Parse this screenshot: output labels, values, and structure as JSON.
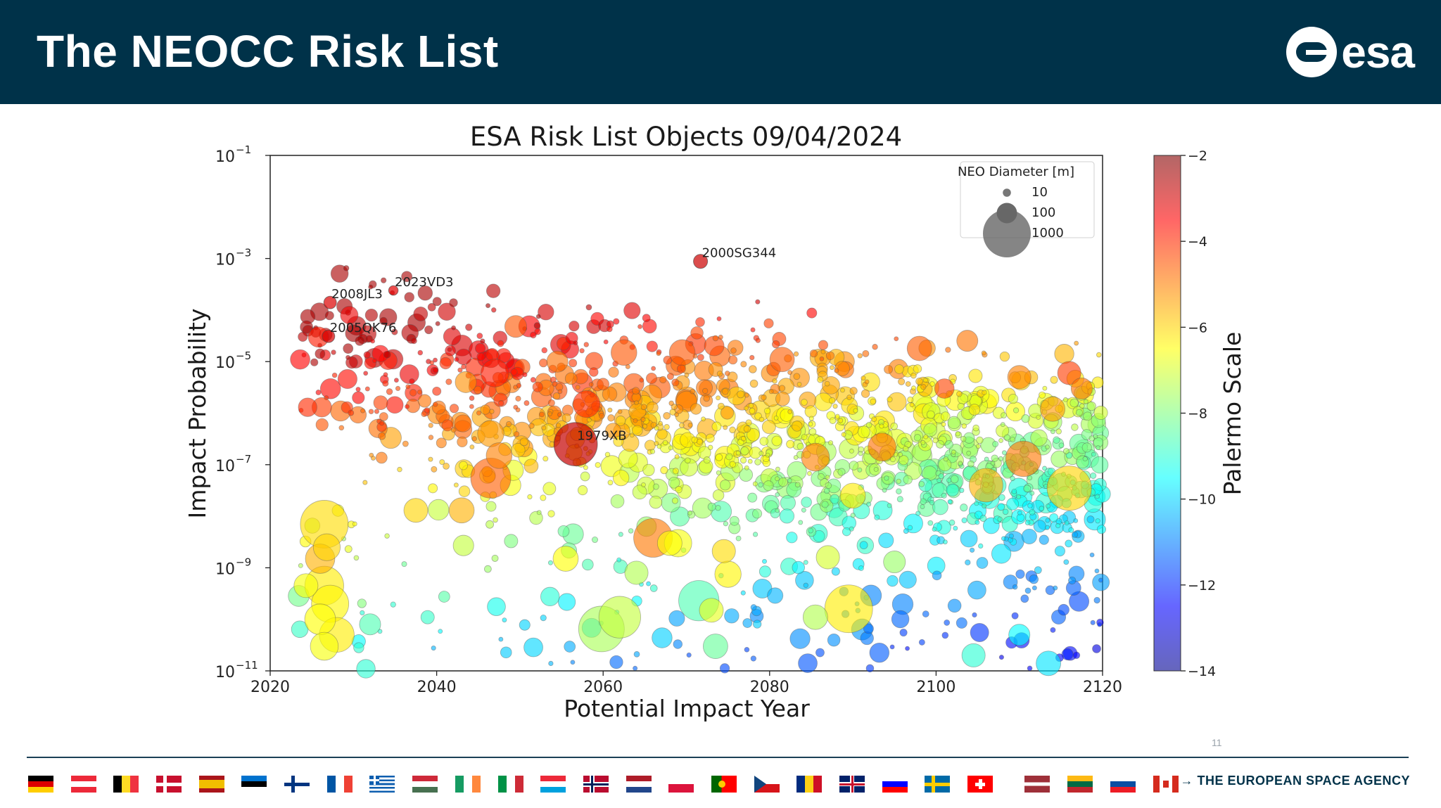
{
  "slide": {
    "title": "The NEOCC Risk List",
    "logo_text": "esa",
    "page_number": "11",
    "agency": "→ THE EUROPEAN SPACE AGENCY"
  },
  "flags": [
    {
      "name": "germany",
      "stripes": "h",
      "colors": [
        "#000000",
        "#dd0000",
        "#ffce00"
      ]
    },
    {
      "name": "austria",
      "stripes": "h",
      "colors": [
        "#ed2939",
        "#ffffff",
        "#ed2939"
      ]
    },
    {
      "name": "belgium",
      "stripes": "v",
      "colors": [
        "#000000",
        "#fdda24",
        "#ef3340"
      ]
    },
    {
      "name": "denmark",
      "cross": "nordic",
      "colors": [
        "#c8102e",
        "#ffffff"
      ]
    },
    {
      "name": "spain",
      "stripes": "h3",
      "colors": [
        "#aa151b",
        "#f1bf00",
        "#aa151b"
      ]
    },
    {
      "name": "estonia",
      "stripes": "h",
      "colors": [
        "#0072ce",
        "#000000",
        "#ffffff"
      ]
    },
    {
      "name": "finland",
      "cross": "nordic",
      "colors": [
        "#ffffff",
        "#003580"
      ]
    },
    {
      "name": "france",
      "stripes": "v",
      "colors": [
        "#0055a4",
        "#ffffff",
        "#ef4135"
      ]
    },
    {
      "name": "greece",
      "stripes": "greek",
      "colors": [
        "#0d5eaf",
        "#ffffff"
      ]
    },
    {
      "name": "hungary",
      "stripes": "h",
      "colors": [
        "#ce2939",
        "#ffffff",
        "#477050"
      ]
    },
    {
      "name": "ireland",
      "stripes": "v",
      "colors": [
        "#169b62",
        "#ffffff",
        "#ff883e"
      ]
    },
    {
      "name": "italy",
      "stripes": "v",
      "colors": [
        "#009246",
        "#ffffff",
        "#ce2b37"
      ]
    },
    {
      "name": "luxembourg",
      "stripes": "h",
      "colors": [
        "#ed2939",
        "#ffffff",
        "#00a1de"
      ]
    },
    {
      "name": "norway",
      "cross": "nordic2",
      "colors": [
        "#ba0c2f",
        "#ffffff",
        "#00205b"
      ]
    },
    {
      "name": "netherlands",
      "stripes": "h",
      "colors": [
        "#ae1c28",
        "#ffffff",
        "#21468b"
      ]
    },
    {
      "name": "poland",
      "stripes": "h2",
      "colors": [
        "#ffffff",
        "#dc143c"
      ]
    },
    {
      "name": "portugal",
      "stripes": "pt",
      "colors": [
        "#006600",
        "#ff0000"
      ]
    },
    {
      "name": "czechia",
      "stripes": "cz",
      "colors": [
        "#ffffff",
        "#d7141a",
        "#11457e"
      ]
    },
    {
      "name": "romania",
      "stripes": "v",
      "colors": [
        "#002b7f",
        "#fcd116",
        "#ce1126"
      ]
    },
    {
      "name": "united-kingdom",
      "stripes": "uk",
      "colors": [
        "#012169",
        "#ffffff",
        "#c8102e"
      ]
    },
    {
      "name": "slovenia",
      "stripes": "h",
      "colors": [
        "#ffffff",
        "#0000ff",
        "#ff0000"
      ]
    },
    {
      "name": "sweden",
      "cross": "nordic",
      "colors": [
        "#006aa7",
        "#fecc00"
      ]
    },
    {
      "name": "switzerland",
      "cross": "swiss",
      "colors": [
        "#ff0000",
        "#ffffff"
      ]
    },
    {
      "name": "latvia",
      "stripes": "lv",
      "colors": [
        "#9e3039",
        "#ffffff"
      ]
    },
    {
      "name": "lithuania",
      "stripes": "h",
      "colors": [
        "#fdb913",
        "#006a44",
        "#c1272d"
      ]
    },
    {
      "name": "slovakia",
      "stripes": "h",
      "colors": [
        "#ffffff",
        "#0b4ea2",
        "#ee1c25"
      ]
    },
    {
      "name": "canada",
      "stripes": "ca",
      "colors": [
        "#d52b1e",
        "#ffffff"
      ]
    }
  ],
  "chart_data": {
    "type": "scatter",
    "title": "ESA Risk List Objects 09/04/2024",
    "xlabel": "Potential Impact Year",
    "ylabel": "Impact Probability",
    "xlim": [
      2020,
      2120
    ],
    "ylim": [
      1e-11,
      0.1
    ],
    "yscale": "log",
    "xticks": [
      "2020",
      "2040",
      "2060",
      "2080",
      "2100",
      "2120"
    ],
    "yticks": [
      {
        "base": "10",
        "exp": "−1"
      },
      {
        "base": "10",
        "exp": "−3"
      },
      {
        "base": "10",
        "exp": "−5"
      },
      {
        "base": "10",
        "exp": "−7"
      },
      {
        "base": "10",
        "exp": "−9"
      },
      {
        "base": "10",
        "exp": "−11"
      }
    ],
    "colorbar": {
      "label": "Palermo Scale",
      "range": [
        -14,
        -2
      ],
      "ticks": [
        "−2",
        "−4",
        "−6",
        "−8",
        "−10",
        "−12",
        "−14"
      ],
      "colormap": "jet"
    },
    "size_legend": {
      "title": "NEO Diameter [m]",
      "entries": [
        {
          "label": "10",
          "diameter_m": 10
        },
        {
          "label": "100",
          "diameter_m": 100
        },
        {
          "label": "1000",
          "diameter_m": 1000
        }
      ],
      "placement": "top-right"
    },
    "labeled_points": [
      {
        "name": "2023VD3",
        "year": 2034.8,
        "prob": 0.00024,
        "palermo": -3.2,
        "diameter_m": 15
      },
      {
        "name": "2000SG344",
        "year": 2071.7,
        "prob": 0.00088,
        "palermo": -2.9,
        "diameter_m": 40
      },
      {
        "name": "2008JL3",
        "year": 2027.2,
        "prob": 0.00014,
        "palermo": -3.1,
        "diameter_m": 30
      },
      {
        "name": "2005QK76",
        "year": 2027.0,
        "prob": 3.1e-05,
        "palermo": -3.0,
        "diameter_m": 30
      },
      {
        "name": "1979XB",
        "year": 2056.7,
        "prob": 2.5e-07,
        "palermo": -2.8,
        "diameter_m": 660
      }
    ],
    "points": [
      {
        "x": 2026.5,
        "y": 7e-09,
        "p": -6.1,
        "d": 1100
      },
      {
        "x": 2026.5,
        "y": 4.5e-10,
        "p": -6.3,
        "d": 500
      },
      {
        "x": 2027.2,
        "y": 2e-10,
        "p": -6.4,
        "d": 450
      },
      {
        "x": 2028.0,
        "y": 5e-11,
        "p": -6.3,
        "d": 380
      },
      {
        "x": 2026.0,
        "y": 1.5e-09,
        "p": -5.6,
        "d": 250
      },
      {
        "x": 2026.8,
        "y": 2.5e-09,
        "p": -6.0,
        "d": 200
      },
      {
        "x": 2026.0,
        "y": 1e-10,
        "p": -6.5,
        "d": 280
      },
      {
        "x": 2026.5,
        "y": 3e-11,
        "p": -6.6,
        "d": 220
      },
      {
        "x": 2024.3,
        "y": 4.5e-10,
        "p": -6.6,
        "d": 150
      },
      {
        "x": 2089.5,
        "y": 1.6e-10,
        "p": -6.3,
        "d": 1000
      },
      {
        "x": 2059.8,
        "y": 6.5e-11,
        "p": -7.5,
        "d": 750
      },
      {
        "x": 2062.0,
        "y": 1.1e-10,
        "p": -7.2,
        "d": 600
      },
      {
        "x": 2071.5,
        "y": 2.3e-10,
        "p": -8.6,
        "d": 550
      },
      {
        "x": 2066.0,
        "y": 3.8e-09,
        "p": -4.9,
        "d": 500
      },
      {
        "x": 2046.5,
        "y": 5.5e-08,
        "p": -4.6,
        "d": 540
      },
      {
        "x": 2116.0,
        "y": 3.5e-08,
        "p": -6.0,
        "d": 700
      },
      {
        "x": 2106.0,
        "y": 4e-08,
        "p": -5.6,
        "d": 350
      },
      {
        "x": 2110.5,
        "y": 1.3e-07,
        "p": -4.9,
        "d": 400
      },
      {
        "x": 2062.5,
        "y": 1.5e-05,
        "p": -4.5,
        "d": 180
      },
      {
        "x": 2069.5,
        "y": 1.5e-05,
        "p": -4.5,
        "d": 180
      },
      {
        "x": 2049.5,
        "y": 4.8e-05,
        "p": -4.5,
        "d": 120
      },
      {
        "x": 2047.0,
        "y": 6e-06,
        "p": -3.8,
        "d": 220
      },
      {
        "x": 2058.0,
        "y": 1.5e-06,
        "p": -4.0,
        "d": 200
      },
      {
        "x": 2047.5,
        "y": 1.5e-07,
        "p": -5.0,
        "d": 180
      },
      {
        "x": 2046.5,
        "y": 4e-07,
        "p": -5.3,
        "d": 190
      },
      {
        "x": 2043.5,
        "y": 4e-06,
        "p": -5.2,
        "d": 110
      },
      {
        "x": 2026.2,
        "y": 1.3e-06,
        "p": -4.2,
        "d": 90
      },
      {
        "x": 2024.5,
        "y": 1.3e-06,
        "p": -4.0,
        "d": 80
      },
      {
        "x": 2025.8,
        "y": 3e-05,
        "p": -3.8,
        "d": 100
      },
      {
        "x": 2023.6,
        "y": 1.1e-05,
        "p": -3.5,
        "d": 90
      },
      {
        "x": 2029.5,
        "y": 8e-05,
        "p": -3.3,
        "d": 70
      },
      {
        "x": 2054.5,
        "y": 1e-05,
        "p": -4.8,
        "d": 110
      },
      {
        "x": 2085.5,
        "y": 1.4e-07,
        "p": -5.0,
        "d": 220
      },
      {
        "x": 2081.5,
        "y": 1.1e-05,
        "p": -4.6,
        "d": 160
      },
      {
        "x": 2093.5,
        "y": 2.2e-07,
        "p": -4.8,
        "d": 220
      },
      {
        "x": 2098.0,
        "y": 1.8e-05,
        "p": -4.6,
        "d": 160
      },
      {
        "x": 2110.0,
        "y": 5e-06,
        "p": -5.0,
        "d": 140
      },
      {
        "x": 2114.0,
        "y": 1.2e-06,
        "p": -5.3,
        "d": 160
      },
      {
        "x": 2090.0,
        "y": 2.5e-08,
        "p": -6.3,
        "d": 170
      },
      {
        "x": 2085.5,
        "y": 1.1e-10,
        "p": -7.4,
        "d": 160
      },
      {
        "x": 2073.5,
        "y": 3e-11,
        "p": -8.3,
        "d": 160
      },
      {
        "x": 2075.0,
        "y": 7.5e-10,
        "p": -6.4,
        "d": 190
      },
      {
        "x": 2073.0,
        "y": 1.5e-10,
        "p": -6.8,
        "d": 150
      },
      {
        "x": 2064.0,
        "y": 8e-10,
        "p": -7.4,
        "d": 140
      },
      {
        "x": 2068.0,
        "y": 3e-09,
        "p": -6.5,
        "d": 160
      },
      {
        "x": 2069.0,
        "y": 3e-09,
        "p": -6.6,
        "d": 210
      },
      {
        "x": 2074.5,
        "y": 2.1e-09,
        "p": -6.1,
        "d": 140
      },
      {
        "x": 2087.0,
        "y": 1.6e-09,
        "p": -7.0,
        "d": 140
      },
      {
        "x": 2095.0,
        "y": 1.3e-09,
        "p": -7.7,
        "d": 120
      },
      {
        "x": 2104.5,
        "y": 2e-11,
        "p": -9.0,
        "d": 140
      },
      {
        "x": 2113.5,
        "y": 1.4e-11,
        "p": -9.8,
        "d": 160
      },
      {
        "x": 2037.5,
        "y": 1.3e-08,
        "p": -6.0,
        "d": 150
      },
      {
        "x": 2043.0,
        "y": 1.3e-08,
        "p": -5.6,
        "d": 170
      },
      {
        "x": 2055.5,
        "y": 1.5e-09,
        "p": -6.5,
        "d": 170
      },
      {
        "x": 2031.5,
        "y": 1.1e-11,
        "p": -9.0,
        "d": 80
      },
      {
        "x": 2032.0,
        "y": 8e-11,
        "p": -8.6,
        "d": 110
      },
      {
        "x": 2116.0,
        "y": 6e-06,
        "p": -4.2,
        "d": 140
      },
      {
        "x": 2117.5,
        "y": 3e-06,
        "p": -4.8,
        "d": 110
      },
      {
        "x": 2101.0,
        "y": 3e-06,
        "p": -4.3,
        "d": 90
      },
      {
        "x": 2110.0,
        "y": 5e-11,
        "p": -9.5,
        "d": 110
      }
    ]
  }
}
